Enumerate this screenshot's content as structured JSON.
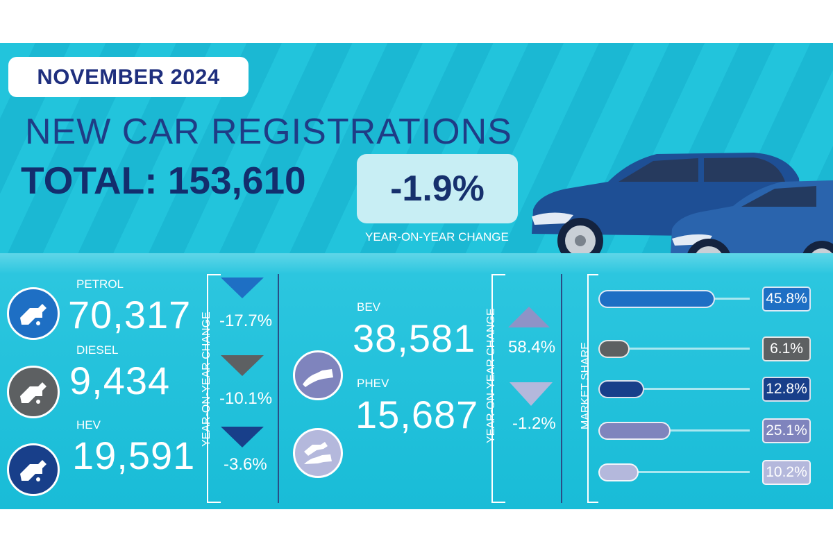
{
  "header": {
    "month_badge": "NOVEMBER 2024",
    "title": "NEW CAR REGISTRATIONS",
    "total_text": "TOTAL: 153,610",
    "yoy_change": "-1.9%",
    "yoy_label": "YEAR-ON-YEAR CHANGE"
  },
  "fuels": {
    "petrol": {
      "label": "PETROL",
      "value": "70,317",
      "change": "-17.7%",
      "color": "#1e6fc4",
      "icon": "fuel-pump-icon"
    },
    "diesel": {
      "label": "DIESEL",
      "value": "9,434",
      "change": "-10.1%",
      "color": "#5d6062",
      "icon": "fuel-pump-icon"
    },
    "hev": {
      "label": "HEV",
      "value": "19,591",
      "change": "-3.6%",
      "color": "#183f8a",
      "icon": "fuel-pump-icon"
    },
    "bev": {
      "label": "BEV",
      "value": "38,581",
      "change": "58.4%",
      "color": "#7f84bd",
      "icon": "ev-plug-icon"
    },
    "phev": {
      "label": "PHEV",
      "value": "15,687",
      "change": "-1.2%",
      "color": "#b4b8dc",
      "icon": "plug-and-pump-icon"
    }
  },
  "yoy_axis_label": "YEAR-ON-YEAR CHANGE",
  "market_share_label": "MARKET SHARE",
  "chart_data": {
    "type": "bar",
    "categories": [
      "PETROL",
      "DIESEL",
      "HEV",
      "BEV",
      "PHEV"
    ],
    "registrations": [
      70317,
      9434,
      19591,
      38581,
      15687
    ],
    "yoy_change_percent": [
      -17.7,
      -10.1,
      -3.6,
      58.4,
      -1.2
    ],
    "market_share_percent": [
      45.8,
      6.1,
      12.8,
      25.1,
      10.2
    ],
    "market_share_labels": [
      "45.8%",
      "6.1%",
      "12.8%",
      "25.1%",
      "10.2%"
    ],
    "colors": [
      "#1e6fc4",
      "#5d6062",
      "#183f8a",
      "#7f84bd",
      "#b4b8dc"
    ],
    "total": 153610,
    "total_yoy_change_percent": -1.9
  }
}
